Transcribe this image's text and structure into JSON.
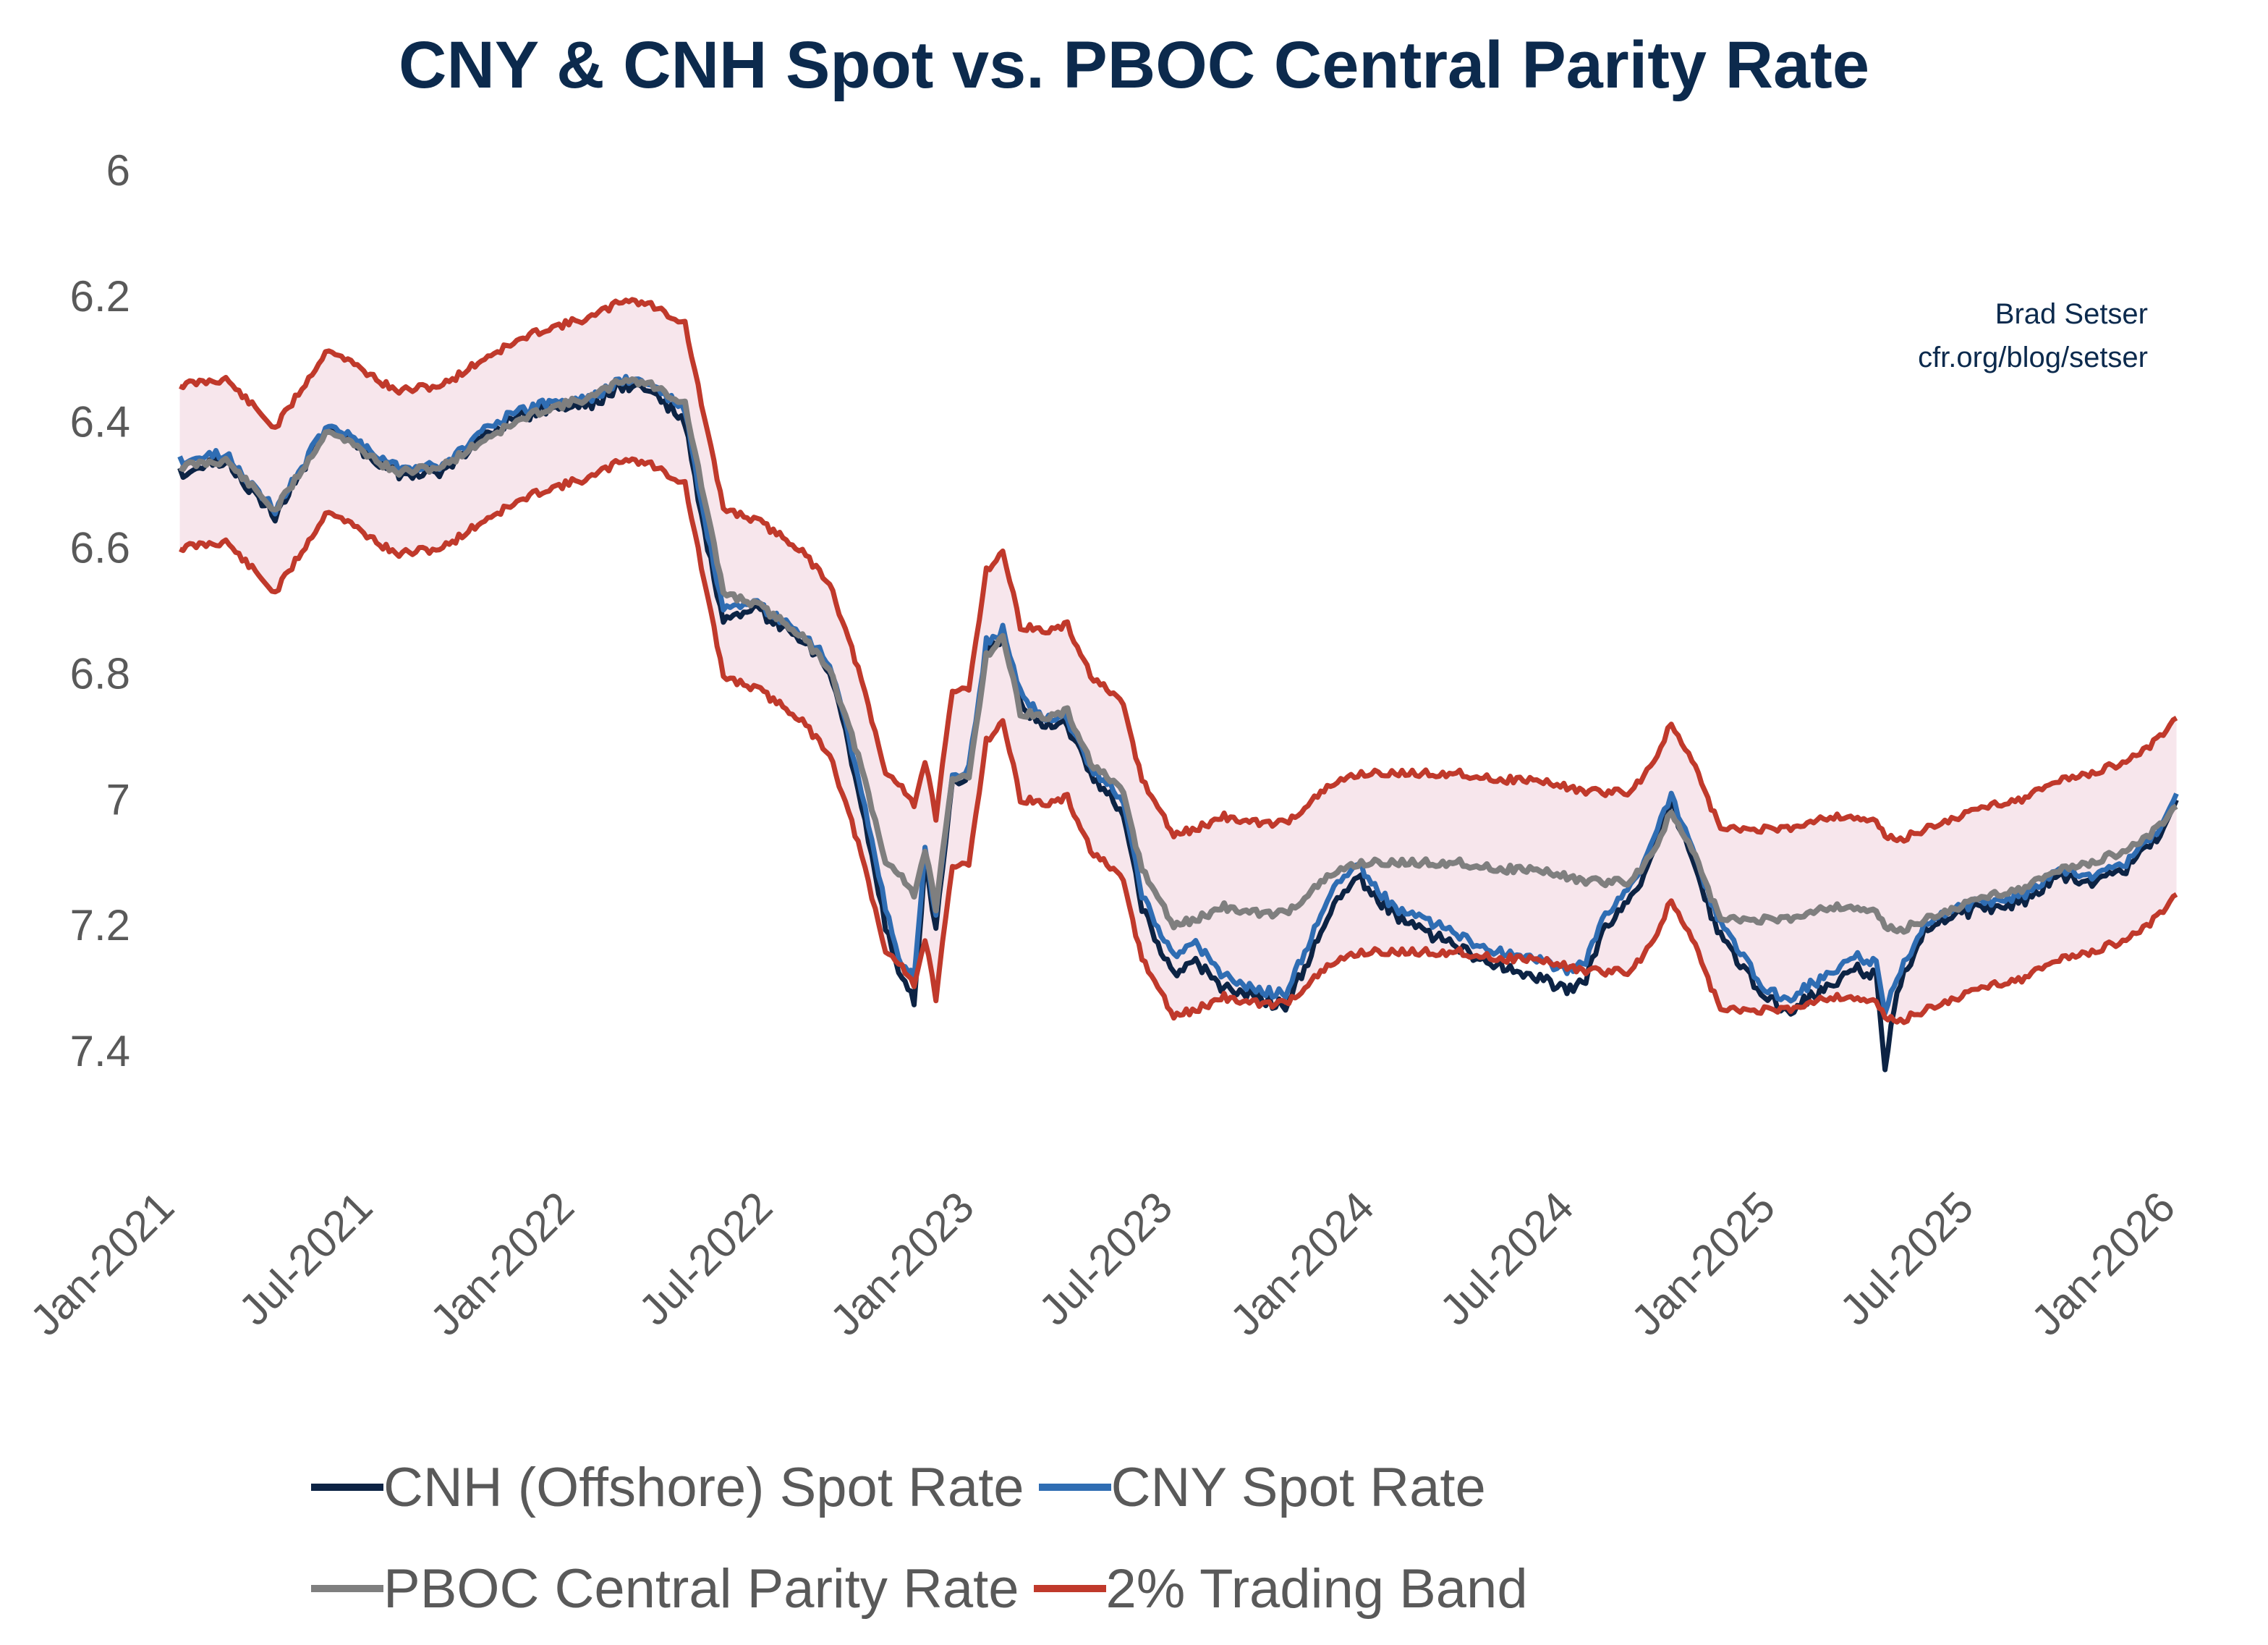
{
  "title": "CNY & CNH Spot vs. PBOC Central Parity Rate",
  "credit": {
    "author": "Brad Setser",
    "url": "cfr.org/blog/setser"
  },
  "legend": [
    {
      "label": "CNH (Offshore) Spot Rate",
      "color": "#0c2344"
    },
    {
      "label": "CNY Spot Rate",
      "color": "#2f6db3"
    },
    {
      "label": "PBOC Central Parity Rate",
      "color": "#7f7f7f"
    },
    {
      "label": "2% Trading Band",
      "color": "#c0392b"
    }
  ],
  "colors": {
    "cnh": "#0c2344",
    "cny": "#2f6db3",
    "parity": "#7f7f7f",
    "band": "#c0392b",
    "band_fill": "#f7e6ec",
    "tick_text": "#595959"
  },
  "chart_data": {
    "type": "line",
    "title": "CNY & CNH Spot vs. PBOC Central Parity Rate",
    "xlabel": "",
    "ylabel": "",
    "y_inverted": true,
    "ylim": [
      6.0,
      7.5
    ],
    "y_ticks": [
      6,
      6.2,
      6.4,
      6.6,
      6.8,
      7,
      7.2,
      7.4
    ],
    "y_tick_labels": [
      "6",
      "6.2",
      "6.4",
      "6.6",
      "6.8",
      "7",
      "7.2",
      "7.4"
    ],
    "x_range": [
      "2021-01-01",
      "2026-01-01"
    ],
    "x_ticks": [
      "2021-01-01",
      "2021-07-01",
      "2022-01-01",
      "2022-07-01",
      "2023-01-01",
      "2023-07-01",
      "2024-01-01",
      "2024-07-01",
      "2025-01-01",
      "2025-07-01",
      "2026-01-01"
    ],
    "x_tick_labels": [
      "Jan-2021",
      "Jul-2021",
      "Jan-2022",
      "Jul-2022",
      "Jan-2023",
      "Jul-2023",
      "Jan-2024",
      "Jul-2024",
      "Jan-2025",
      "Jul-2025",
      "Jan-2026"
    ],
    "grid": false,
    "legend_position": "bottom",
    "series": [
      {
        "name": "CNH (Offshore) Spot Rate",
        "key": "cnh",
        "x": [
          "2021-01-04",
          "2021-02-15",
          "2021-04-01",
          "2021-05-20",
          "2021-06-15",
          "2021-07-20",
          "2021-09-01",
          "2021-10-15",
          "2021-12-01",
          "2022-01-15",
          "2022-02-15",
          "2022-03-10",
          "2022-04-10",
          "2022-04-25",
          "2022-05-15",
          "2022-06-15",
          "2022-07-20",
          "2022-08-20",
          "2022-09-15",
          "2022-10-10",
          "2022-10-25",
          "2022-11-05",
          "2022-11-15",
          "2022-11-25",
          "2022-12-10",
          "2022-12-25",
          "2023-01-10",
          "2023-01-25",
          "2023-02-10",
          "2023-03-05",
          "2023-03-25",
          "2023-04-15",
          "2023-05-15",
          "2023-06-01",
          "2023-06-30",
          "2023-07-20",
          "2023-08-15",
          "2023-09-10",
          "2023-10-10",
          "2023-11-20",
          "2023-12-15",
          "2024-01-15",
          "2024-02-15",
          "2024-03-20",
          "2024-04-20",
          "2024-05-20",
          "2024-06-20",
          "2024-07-10",
          "2024-07-25",
          "2024-08-20",
          "2024-09-10",
          "2024-09-26",
          "2024-10-15",
          "2024-11-10",
          "2024-12-01",
          "2024-12-20",
          "2025-01-10",
          "2025-01-25",
          "2025-02-15",
          "2025-03-15",
          "2025-04-01",
          "2025-04-09",
          "2025-04-20",
          "2025-05-15",
          "2025-06-15",
          "2025-07-15",
          "2025-08-15",
          "2025-09-15",
          "2025-10-15",
          "2025-11-15",
          "2025-12-10",
          "2025-12-31"
        ],
        "y": [
          6.48,
          6.46,
          6.55,
          6.4,
          6.44,
          6.48,
          6.48,
          6.41,
          6.38,
          6.37,
          6.34,
          6.35,
          6.4,
          6.55,
          6.72,
          6.7,
          6.74,
          6.79,
          6.98,
          7.2,
          7.29,
          7.32,
          7.1,
          7.2,
          6.97,
          6.96,
          6.76,
          6.74,
          6.85,
          6.88,
          6.88,
          6.96,
          7.02,
          7.17,
          7.28,
          7.26,
          7.3,
          7.31,
          7.33,
          7.18,
          7.12,
          7.18,
          7.21,
          7.24,
          7.26,
          7.28,
          7.3,
          7.29,
          7.21,
          7.16,
          7.08,
          7.0,
          7.1,
          7.22,
          7.27,
          7.31,
          7.34,
          7.32,
          7.3,
          7.27,
          7.28,
          7.43,
          7.3,
          7.21,
          7.18,
          7.17,
          7.16,
          7.12,
          7.13,
          7.11,
          7.07,
          7.0
        ]
      },
      {
        "name": "CNY Spot Rate",
        "key": "cny",
        "x": [
          "2021-01-04",
          "2021-02-15",
          "2021-04-01",
          "2021-05-20",
          "2021-06-15",
          "2021-07-20",
          "2021-09-01",
          "2021-10-15",
          "2021-12-01",
          "2022-01-15",
          "2022-02-15",
          "2022-03-10",
          "2022-04-10",
          "2022-04-25",
          "2022-05-15",
          "2022-06-15",
          "2022-07-20",
          "2022-08-20",
          "2022-09-15",
          "2022-10-10",
          "2022-10-25",
          "2022-11-05",
          "2022-11-15",
          "2022-11-25",
          "2022-12-10",
          "2022-12-25",
          "2023-01-10",
          "2023-01-25",
          "2023-02-10",
          "2023-03-05",
          "2023-03-25",
          "2023-04-15",
          "2023-05-15",
          "2023-06-01",
          "2023-06-30",
          "2023-07-20",
          "2023-08-15",
          "2023-09-10",
          "2023-10-10",
          "2023-11-20",
          "2023-12-15",
          "2024-01-15",
          "2024-02-15",
          "2024-03-20",
          "2024-04-20",
          "2024-05-20",
          "2024-06-20",
          "2024-07-10",
          "2024-07-25",
          "2024-08-20",
          "2024-09-10",
          "2024-09-26",
          "2024-10-15",
          "2024-11-10",
          "2024-12-01",
          "2024-12-20",
          "2025-01-10",
          "2025-01-25",
          "2025-02-15",
          "2025-03-15",
          "2025-04-01",
          "2025-04-09",
          "2025-04-20",
          "2025-05-15",
          "2025-06-15",
          "2025-07-15",
          "2025-08-15",
          "2025-09-15",
          "2025-10-15",
          "2025-11-15",
          "2025-12-10",
          "2025-12-31"
        ],
        "y": [
          6.46,
          6.45,
          6.54,
          6.4,
          6.43,
          6.47,
          6.47,
          6.4,
          6.37,
          6.36,
          6.33,
          6.34,
          6.38,
          6.53,
          6.7,
          6.69,
          6.73,
          6.78,
          6.96,
          7.17,
          7.27,
          7.28,
          7.08,
          7.18,
          6.96,
          6.95,
          6.75,
          6.73,
          6.83,
          6.87,
          6.87,
          6.95,
          7.0,
          7.15,
          7.25,
          7.23,
          7.28,
          7.3,
          7.31,
          7.15,
          7.1,
          7.17,
          7.19,
          7.22,
          7.24,
          7.25,
          7.27,
          7.26,
          7.19,
          7.14,
          7.06,
          6.99,
          7.08,
          7.2,
          7.25,
          7.3,
          7.32,
          7.3,
          7.28,
          7.25,
          7.26,
          7.34,
          7.28,
          7.2,
          7.17,
          7.16,
          7.15,
          7.11,
          7.12,
          7.1,
          7.06,
          6.99
        ]
      },
      {
        "name": "PBOC Central Parity Rate",
        "key": "parity",
        "x": [
          "2021-01-04",
          "2021-02-15",
          "2021-04-01",
          "2021-05-20",
          "2021-06-15",
          "2021-07-20",
          "2021-09-01",
          "2021-10-15",
          "2021-12-01",
          "2022-01-15",
          "2022-02-15",
          "2022-03-10",
          "2022-04-10",
          "2022-04-25",
          "2022-05-15",
          "2022-06-15",
          "2022-07-20",
          "2022-08-20",
          "2022-09-15",
          "2022-10-10",
          "2022-10-25",
          "2022-11-05",
          "2022-11-15",
          "2022-11-25",
          "2022-12-10",
          "2022-12-25",
          "2023-01-10",
          "2023-01-25",
          "2023-02-10",
          "2023-03-05",
          "2023-03-25",
          "2023-04-15",
          "2023-05-15",
          "2023-06-01",
          "2023-06-30",
          "2023-07-20",
          "2023-08-15",
          "2023-09-10",
          "2023-10-10",
          "2023-11-20",
          "2023-12-15",
          "2024-01-15",
          "2024-02-15",
          "2024-03-20",
          "2024-04-20",
          "2024-05-20",
          "2024-06-20",
          "2024-07-10",
          "2024-07-25",
          "2024-08-20",
          "2024-09-10",
          "2024-09-26",
          "2024-10-15",
          "2024-11-10",
          "2024-12-01",
          "2024-12-20",
          "2025-01-10",
          "2025-01-25",
          "2025-02-15",
          "2025-03-15",
          "2025-04-01",
          "2025-04-09",
          "2025-04-20",
          "2025-05-15",
          "2025-06-15",
          "2025-07-15",
          "2025-08-15",
          "2025-09-15",
          "2025-10-15",
          "2025-11-15",
          "2025-12-10",
          "2025-12-31"
        ],
        "y": [
          6.47,
          6.46,
          6.54,
          6.41,
          6.44,
          6.48,
          6.47,
          6.42,
          6.38,
          6.36,
          6.33,
          6.34,
          6.37,
          6.5,
          6.67,
          6.69,
          6.73,
          6.79,
          6.93,
          7.1,
          7.12,
          7.15,
          7.08,
          7.17,
          6.97,
          6.96,
          6.77,
          6.74,
          6.86,
          6.87,
          6.86,
          6.94,
          6.99,
          7.11,
          7.2,
          7.19,
          7.17,
          7.18,
          7.18,
          7.12,
          7.1,
          7.1,
          7.1,
          7.1,
          7.11,
          7.11,
          7.12,
          7.13,
          7.13,
          7.13,
          7.08,
          7.02,
          7.08,
          7.19,
          7.19,
          7.19,
          7.19,
          7.18,
          7.17,
          7.17,
          7.18,
          7.2,
          7.21,
          7.19,
          7.17,
          7.15,
          7.14,
          7.11,
          7.1,
          7.08,
          7.05,
          7.01
        ]
      },
      {
        "name": "2% Trading Band",
        "key": "band",
        "note": "upper and lower bands = parity ±2%",
        "band_pct": 0.02
      }
    ]
  }
}
